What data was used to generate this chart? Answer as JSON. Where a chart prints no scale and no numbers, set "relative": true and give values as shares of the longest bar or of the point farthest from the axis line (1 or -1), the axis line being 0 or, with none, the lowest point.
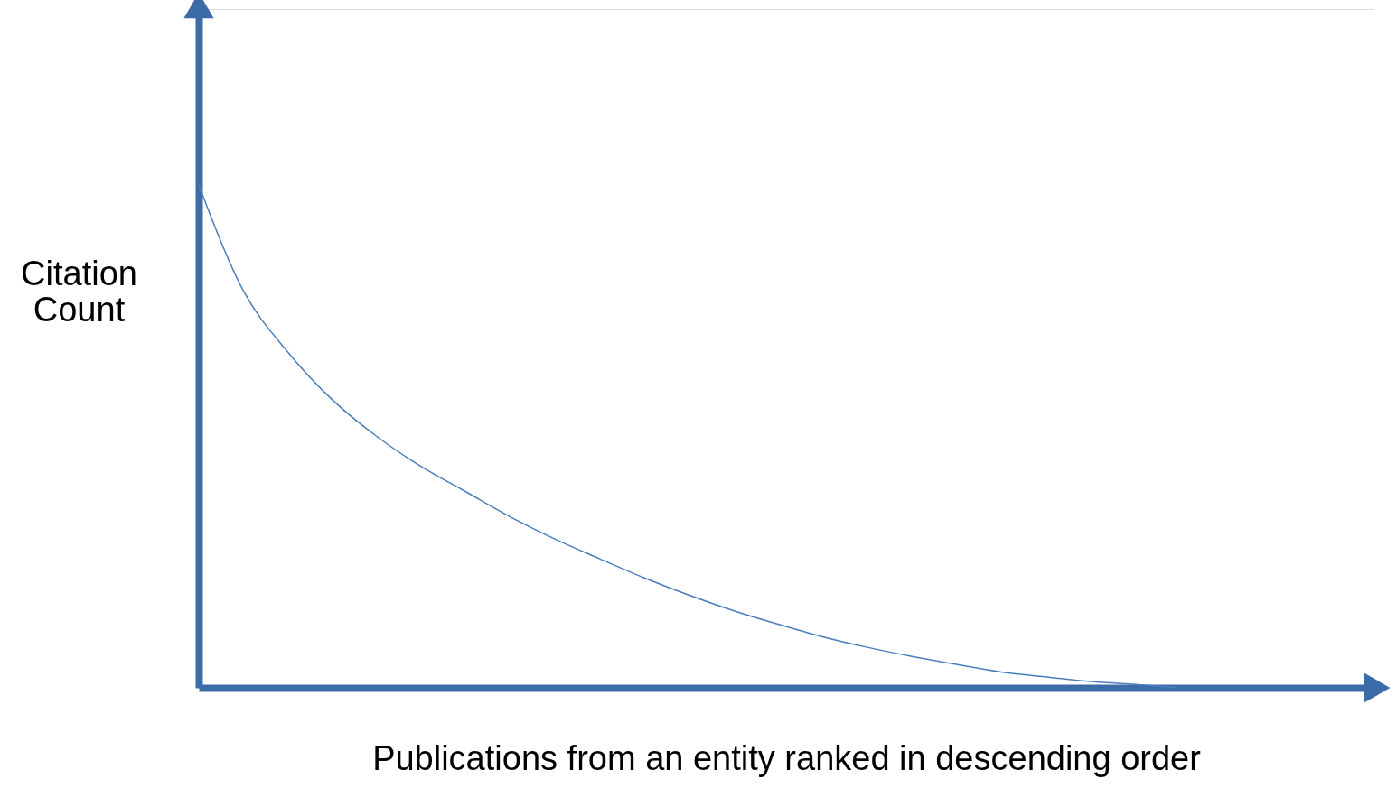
{
  "chart_data": {
    "type": "line",
    "relative": true,
    "xlabel": "Publications from an entity ranked in descending order",
    "ylabel": "Citation Count",
    "tick_labels": false,
    "grid": false,
    "marker": "none",
    "line_style": "solid",
    "categories": [
      null,
      null,
      null,
      null,
      null,
      null,
      null,
      null,
      null,
      null,
      null,
      null,
      null,
      null,
      null,
      null,
      null,
      null,
      null,
      null,
      null,
      null,
      null
    ],
    "series": [
      {
        "color": "#4a7ebb",
        "values": [
          1.0,
          0.79,
          0.668,
          0.573,
          0.5,
          0.44,
          0.39,
          0.34,
          0.296,
          0.257,
          0.219,
          0.185,
          0.154,
          0.127,
          0.102,
          0.081,
          0.063,
          0.047,
          0.032,
          0.022,
          0.013,
          0.007,
          0.0
        ]
      }
    ]
  }
}
